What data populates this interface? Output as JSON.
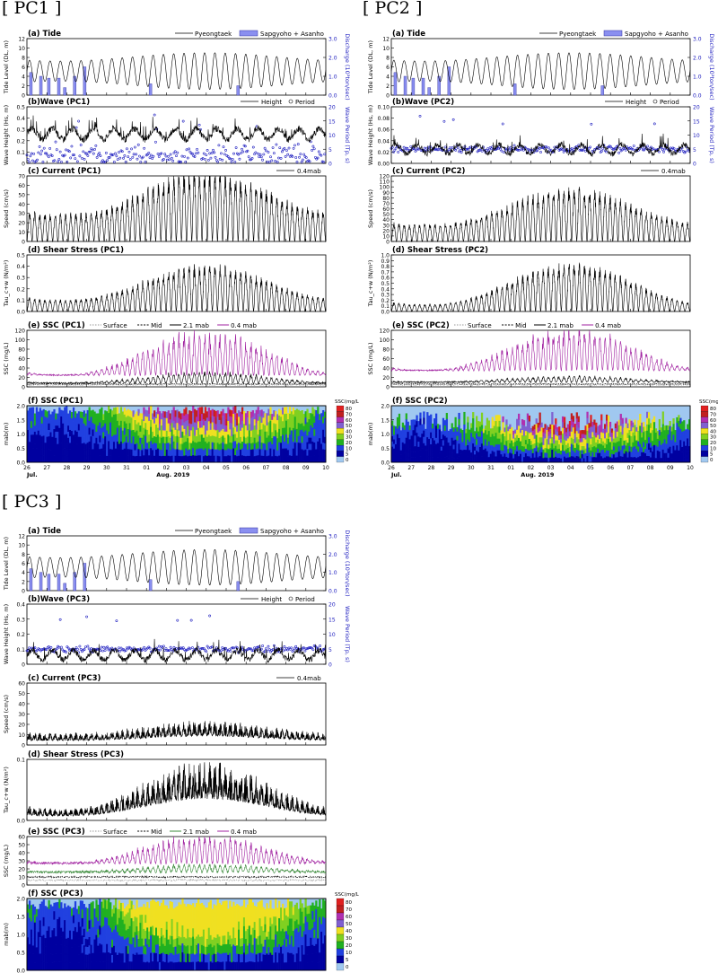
{
  "page": {
    "groups": [
      {
        "label": "PC1"
      },
      {
        "label": "PC2"
      },
      {
        "label": "PC3"
      }
    ]
  },
  "common": {
    "bracket_open": "[",
    "bracket_close": "]",
    "x_ticks": [
      "26",
      "27",
      "28",
      "29",
      "30",
      "31",
      "01",
      "02",
      "03",
      "04",
      "05",
      "06",
      "07",
      "08",
      "09",
      "10"
    ],
    "month_jul": "Jul.",
    "month_aug": "Aug. 2019",
    "tide_legend": [
      "Pyeongtaek",
      "Sapgyoho + Asanho"
    ],
    "wave_legend": [
      "Height",
      "Period"
    ],
    "current_legend": "0.4mab",
    "ssc_legend": [
      "Surface",
      "Mid",
      "2.1 mab",
      "0.4 mab"
    ],
    "colors": {
      "discharge": "#8a8ff0",
      "period": "#2020c0",
      "purple": "#a020a0",
      "green": "#3a8a3a",
      "line": "#000000"
    },
    "colorbar": {
      "title": "SSC(mg/L",
      "ticks": [
        "80",
        "70",
        "60",
        "50",
        "40",
        "30",
        "20",
        "10",
        "5",
        "0"
      ],
      "colors": [
        "#e02020",
        "#c02020",
        "#b030b0",
        "#8060d0",
        "#f0e020",
        "#80d020",
        "#20b020",
        "#2040e0",
        "#0000a0",
        "#a0c8f0"
      ]
    }
  },
  "chart_data": [
    {
      "group": "PC1",
      "type": "line",
      "title": "(a) Tide",
      "ylabel": "Tide Level (DL, m)",
      "y2label": "Discharge (10³ton/sec)",
      "yticks": [
        "0",
        "2",
        "4",
        "6",
        "8",
        "10",
        "12"
      ],
      "y2ticks": [
        "0.0",
        "1.0",
        "2.0",
        "3.0"
      ],
      "series": [
        {
          "name": "Pyeongtaek",
          "range": [
            1,
            9.2
          ],
          "period_days": 0.517
        },
        {
          "name": "Sapgyoho + Asanho",
          "type": "bar",
          "bars": [
            [
              26.2,
              1.2
            ],
            [
              26.7,
              1.0
            ],
            [
              27.1,
              0.9
            ],
            [
              27.6,
              0.9
            ],
            [
              27.9,
              0.4
            ],
            [
              28.4,
              1.0
            ],
            [
              28.9,
              1.5
            ],
            [
              32.2,
              0.6
            ],
            [
              36.6,
              0.5
            ]
          ]
        }
      ]
    },
    {
      "group": "PC1",
      "type": "line",
      "title": "(b)Wave (PC1)",
      "ylabel": "Wave Height (Hs, m)",
      "y2label": "Wave Period (Tp, s)",
      "yticks": [
        "0",
        "0.1",
        "0.2",
        "0.3",
        "0.4",
        "0.5"
      ],
      "y2ticks": [
        "0",
        "5",
        "10",
        "15",
        "20"
      ],
      "series": [
        {
          "name": "Height",
          "mean": 0.26,
          "amp": 0.06
        },
        {
          "name": "Period",
          "type": "scatter",
          "mean": 3,
          "spread": 4
        }
      ]
    },
    {
      "group": "PC1",
      "type": "line",
      "title": "(c) Current (PC1)",
      "ylabel": "Speed (cm/s)",
      "yticks": [
        "0",
        "10",
        "20",
        "30",
        "40",
        "50",
        "60",
        "70"
      ],
      "series": [
        {
          "name": "0.4mab",
          "peaks_min": 28,
          "peaks_max": 72
        }
      ]
    },
    {
      "group": "PC1",
      "type": "line",
      "title": "(d) Shear Stress (PC1)",
      "ylabel": "Tau_c+w (N/m²)",
      "yticks": [
        "0.0",
        "0.1",
        "0.2",
        "0.3",
        "0.4",
        "0.5"
      ],
      "series": [
        {
          "name": "Tau",
          "peaks_min": 0.1,
          "peaks_max": 0.39
        }
      ]
    },
    {
      "group": "PC1",
      "type": "line",
      "title": "(e) SSC (PC1)",
      "ylabel": "SSC (mg/L)",
      "yticks": [
        "0",
        "20",
        "40",
        "60",
        "80",
        "100",
        "120"
      ],
      "series": [
        {
          "name": "Surface",
          "level": 4
        },
        {
          "name": "Mid",
          "level": 6
        },
        {
          "name": "2.1 mab",
          "level": 8,
          "peak": 30
        },
        {
          "name": "0.4 mab",
          "level": 25,
          "peak": 110
        }
      ]
    },
    {
      "group": "PC1",
      "type": "heatmap",
      "title": "(f) SSC (PC1)",
      "ylabel": "mab(m)",
      "yticks": [
        "0.0",
        "0.5",
        "1.0",
        "1.5",
        "2.0"
      ],
      "zlabel": "SSC(mg/L)",
      "zrange": [
        0,
        80
      ],
      "top_m": 2.0
    },
    {
      "group": "PC2",
      "type": "line",
      "title": "(a) Tide",
      "ylabel": "Tide Level (DL, m)",
      "y2label": "Discharge (10³ton/sec)",
      "yticks": [
        "0",
        "2",
        "4",
        "6",
        "8",
        "10",
        "12"
      ],
      "y2ticks": [
        "0.0",
        "1.0",
        "2.0",
        "3.0"
      ],
      "series": [
        {
          "name": "Pyeongtaek",
          "range": [
            1,
            9.2
          ],
          "period_days": 0.517
        },
        {
          "name": "Sapgyoho + Asanho",
          "type": "bar",
          "bars": [
            [
              26.2,
              1.2
            ],
            [
              26.7,
              1.0
            ],
            [
              27.1,
              0.9
            ],
            [
              27.6,
              0.9
            ],
            [
              27.9,
              0.4
            ],
            [
              28.4,
              1.0
            ],
            [
              28.9,
              1.5
            ],
            [
              32.2,
              0.6
            ],
            [
              36.6,
              0.5
            ]
          ]
        }
      ]
    },
    {
      "group": "PC2",
      "type": "line",
      "title": "(b)Wave (PC2)",
      "ylabel": "Wave Height (Hs, m)",
      "y2label": "Wave Period (Tp, s)",
      "yticks": [
        "0.00",
        "0.02",
        "0.04",
        "0.06",
        "0.08",
        "0.10"
      ],
      "y2ticks": [
        "0",
        "5",
        "10",
        "15",
        "20"
      ],
      "series": [
        {
          "name": "Height",
          "mean": 0.025,
          "amp": 0.01
        },
        {
          "name": "Period",
          "type": "scatter",
          "mean": 5,
          "spread": 1.2
        }
      ]
    },
    {
      "group": "PC2",
      "type": "line",
      "title": "(c) Current (PC2)",
      "ylabel": "Speed (cm/s)",
      "yticks": [
        "0",
        "10",
        "20",
        "30",
        "40",
        "50",
        "60",
        "70",
        "80",
        "90",
        "100",
        "110",
        "120"
      ],
      "series": [
        {
          "name": "0.4mab",
          "peaks_min": 30,
          "peaks_max": 92
        }
      ]
    },
    {
      "group": "PC2",
      "type": "line",
      "title": "(d) Shear Stress (PC2)",
      "ylabel": "Tau_c+w (N/m²)",
      "yticks": [
        "0.0",
        "0.1",
        "0.2",
        "0.3",
        "0.4",
        "0.5",
        "0.6",
        "0.7",
        "0.8",
        "0.9",
        "1.0"
      ],
      "series": [
        {
          "name": "Tau",
          "peaks_min": 0.12,
          "peaks_max": 0.82
        }
      ]
    },
    {
      "group": "PC2",
      "type": "line",
      "title": "(e) SSC (PC2)",
      "ylabel": "SSC (mg/L)",
      "yticks": [
        "0",
        "20",
        "40",
        "60",
        "80",
        "100",
        "120"
      ],
      "series": [
        {
          "name": "Surface",
          "level": 4
        },
        {
          "name": "Mid",
          "level": 6
        },
        {
          "name": "2.1 mab",
          "level": 10,
          "peak": 22
        },
        {
          "name": "0.4 mab",
          "level": 35,
          "peak": 115
        }
      ]
    },
    {
      "group": "PC2",
      "type": "heatmap",
      "title": "(f) SSC (PC2)",
      "ylabel": "mab(m)",
      "yticks": [
        "0.0",
        "0.5",
        "1.0",
        "1.5",
        "2.0"
      ],
      "zlabel": "SSC(mg/L)",
      "zrange": [
        0,
        80
      ],
      "top_m": 2.0
    },
    {
      "group": "PC3",
      "type": "line",
      "title": "(a) Tide",
      "ylabel": "Tide Level (DL, m)",
      "y2label": "Discharge (10³ton/sec)",
      "yticks": [
        "0",
        "2",
        "4",
        "6",
        "8",
        "10",
        "12"
      ],
      "y2ticks": [
        "0.0",
        "1.0",
        "2.0",
        "3.0"
      ],
      "series": [
        {
          "name": "Pyeongtaek",
          "range": [
            1,
            9.2
          ],
          "period_days": 0.517
        },
        {
          "name": "Sapgyoho + Asanho",
          "type": "bar",
          "bars": [
            [
              26.2,
              1.2
            ],
            [
              26.7,
              1.0
            ],
            [
              27.1,
              0.9
            ],
            [
              27.6,
              0.9
            ],
            [
              27.9,
              0.4
            ],
            [
              28.4,
              1.0
            ],
            [
              28.9,
              1.5
            ],
            [
              32.2,
              0.6
            ],
            [
              36.6,
              0.5
            ]
          ]
        }
      ]
    },
    {
      "group": "PC3",
      "type": "line",
      "title": "(b)Wave (PC3)",
      "ylabel": "Wave Height (Hs, m)",
      "y2label": "Wave Period (Tp, s)",
      "yticks": [
        "0",
        "0.1",
        "0.2",
        "0.3",
        "0.4"
      ],
      "y2ticks": [
        "0",
        "5",
        "10",
        "15",
        "20"
      ],
      "series": [
        {
          "name": "Height",
          "mean": 0.06,
          "amp": 0.04
        },
        {
          "name": "Period",
          "type": "scatter",
          "mean": 5,
          "spread": 1
        }
      ]
    },
    {
      "group": "PC3",
      "type": "line",
      "title": "(c) Current (PC3)",
      "ylabel": "Speed (cm/s)",
      "yticks": [
        "0",
        "10",
        "20",
        "30",
        "40",
        "50",
        "60"
      ],
      "series": [
        {
          "name": "0.4mab",
          "peaks_min": 12,
          "peaks_max": 24
        }
      ]
    },
    {
      "group": "PC3",
      "type": "line",
      "title": "(d) Shear Stress (PC3)",
      "ylabel": "Tau_c+w (N/m²)",
      "yticks": [
        "0.0",
        "0.1"
      ],
      "series": [
        {
          "name": "Tau",
          "peaks_min": 0.02,
          "peaks_max": 0.1
        }
      ]
    },
    {
      "group": "PC3",
      "type": "line",
      "title": "(e) SSC (PC3)",
      "ylabel": "SSC (mg/L)",
      "yticks": [
        "0",
        "10",
        "20",
        "30",
        "40",
        "50",
        "60"
      ],
      "series": [
        {
          "name": "Surface",
          "level": 6
        },
        {
          "name": "Mid",
          "level": 10
        },
        {
          "name": "2.1 mab",
          "level": 16,
          "peak": 25
        },
        {
          "name": "0.4 mab",
          "level": 27,
          "peak": 58
        }
      ]
    },
    {
      "group": "PC3",
      "type": "heatmap",
      "title": "(f) SSC (PC3)",
      "ylabel": "mab(m)",
      "yticks": [
        "0.0",
        "0.5",
        "1.0",
        "1.5",
        "2.0"
      ],
      "zlabel": "SSC(mg/L)",
      "zrange": [
        0,
        80
      ],
      "top_m": 2.0
    }
  ]
}
